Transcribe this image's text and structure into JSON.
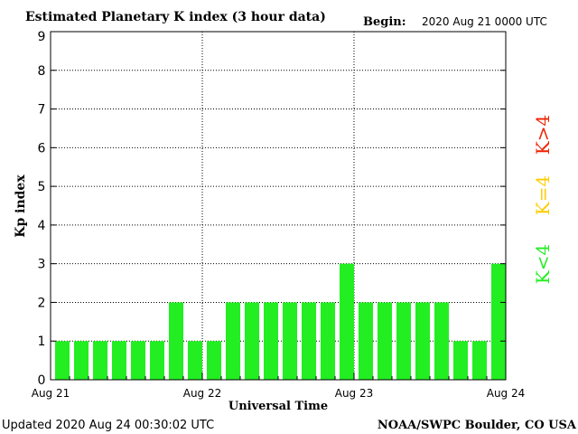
{
  "header": {
    "title": "Estimated Planetary K index (3 hour data)",
    "begin_label": "Begin:",
    "begin_value": "2020 Aug 21 0000 UTC"
  },
  "footer": {
    "updated": "Updated 2020 Aug 24 00:30:02 UTC",
    "source": "NOAA/SWPC Boulder, CO USA"
  },
  "legend": {
    "low": {
      "label": "K<4",
      "color": "#22ee22"
    },
    "mid": {
      "label": "K=4",
      "color": "#ffcc00"
    },
    "high": {
      "label": "K>4",
      "color": "#ee2200"
    }
  },
  "chart_data": {
    "type": "bar",
    "title": "Estimated Planetary K index (3 hour data)",
    "xlabel": "Universal Time",
    "ylabel": "Kp index",
    "ylim": [
      0,
      9
    ],
    "yticks": [
      0,
      1,
      2,
      3,
      4,
      5,
      6,
      7,
      8,
      9
    ],
    "xtick_labels": [
      "Aug 21",
      "Aug 22",
      "Aug 23",
      "Aug 24"
    ],
    "grid": "dotted",
    "bar_color": "#22ee22",
    "values": [
      1,
      1,
      1,
      1,
      1,
      1,
      2,
      1,
      1,
      2,
      2,
      2,
      2,
      2,
      2,
      3,
      2,
      2,
      2,
      2,
      2,
      1,
      1,
      3
    ]
  }
}
